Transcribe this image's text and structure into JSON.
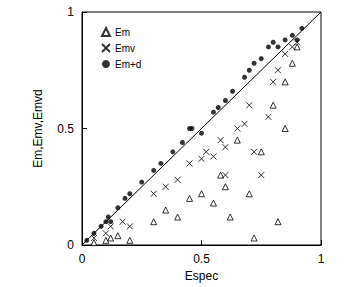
{
  "chart_data": {
    "type": "scatter",
    "x_label": "Espec",
    "y_label": "Em,Emv,Emvd",
    "xlim": [
      0,
      1
    ],
    "ylim": [
      0,
      1
    ],
    "xticks": [
      0,
      0.5,
      1
    ],
    "yticks": [
      0,
      0.5,
      1
    ],
    "grid": false,
    "legend": "upper left",
    "lines": [
      {
        "x": [
          0,
          1
        ],
        "values": [
          0,
          1
        ],
        "color": "#000000"
      }
    ],
    "series": [
      {
        "name": "Em",
        "marker": "triangle",
        "color": "#000000",
        "x": [
          0.05,
          0.1,
          0.12,
          0.15,
          0.2,
          0.3,
          0.35,
          0.4,
          0.45,
          0.5,
          0.55,
          0.58,
          0.6,
          0.62,
          0.65,
          0.7,
          0.72,
          0.75,
          0.8,
          0.82,
          0.85,
          0.88,
          0.9,
          0.85
        ],
        "values": [
          0.01,
          0.02,
          0.03,
          0.04,
          0.02,
          0.1,
          0.15,
          0.12,
          0.2,
          0.22,
          0.18,
          0.3,
          0.25,
          0.12,
          0.45,
          0.22,
          0.03,
          0.4,
          0.6,
          0.1,
          0.7,
          0.78,
          0.85,
          0.5
        ]
      },
      {
        "name": "Emv",
        "marker": "x",
        "color": "#000000",
        "x": [
          0.05,
          0.1,
          0.12,
          0.17,
          0.2,
          0.3,
          0.35,
          0.4,
          0.45,
          0.5,
          0.52,
          0.55,
          0.58,
          0.6,
          0.65,
          0.68,
          0.7,
          0.72,
          0.75,
          0.78,
          0.8,
          0.82,
          0.85,
          0.88,
          0.9,
          0.6
        ],
        "values": [
          0.03,
          0.05,
          0.08,
          0.1,
          0.08,
          0.22,
          0.25,
          0.28,
          0.35,
          0.37,
          0.4,
          0.38,
          0.45,
          0.42,
          0.5,
          0.52,
          0.6,
          0.4,
          0.3,
          0.55,
          0.7,
          0.75,
          0.82,
          0.85,
          0.87,
          0.3
        ]
      },
      {
        "name": "Em+d",
        "marker": "circle",
        "color": "#000000",
        "x": [
          0.02,
          0.05,
          0.08,
          0.1,
          0.11,
          0.12,
          0.15,
          0.18,
          0.2,
          0.25,
          0.3,
          0.33,
          0.38,
          0.42,
          0.45,
          0.46,
          0.5,
          0.55,
          0.57,
          0.6,
          0.63,
          0.68,
          0.7,
          0.72,
          0.75,
          0.78,
          0.8,
          0.82,
          0.85,
          0.88,
          0.9,
          0.92
        ],
        "values": [
          0.02,
          0.05,
          0.08,
          0.1,
          0.12,
          0.1,
          0.16,
          0.2,
          0.22,
          0.27,
          0.32,
          0.35,
          0.4,
          0.44,
          0.5,
          0.5,
          0.48,
          0.57,
          0.59,
          0.62,
          0.66,
          0.72,
          0.75,
          0.78,
          0.8,
          0.85,
          0.87,
          0.85,
          0.88,
          0.9,
          0.88,
          0.93
        ]
      }
    ]
  }
}
